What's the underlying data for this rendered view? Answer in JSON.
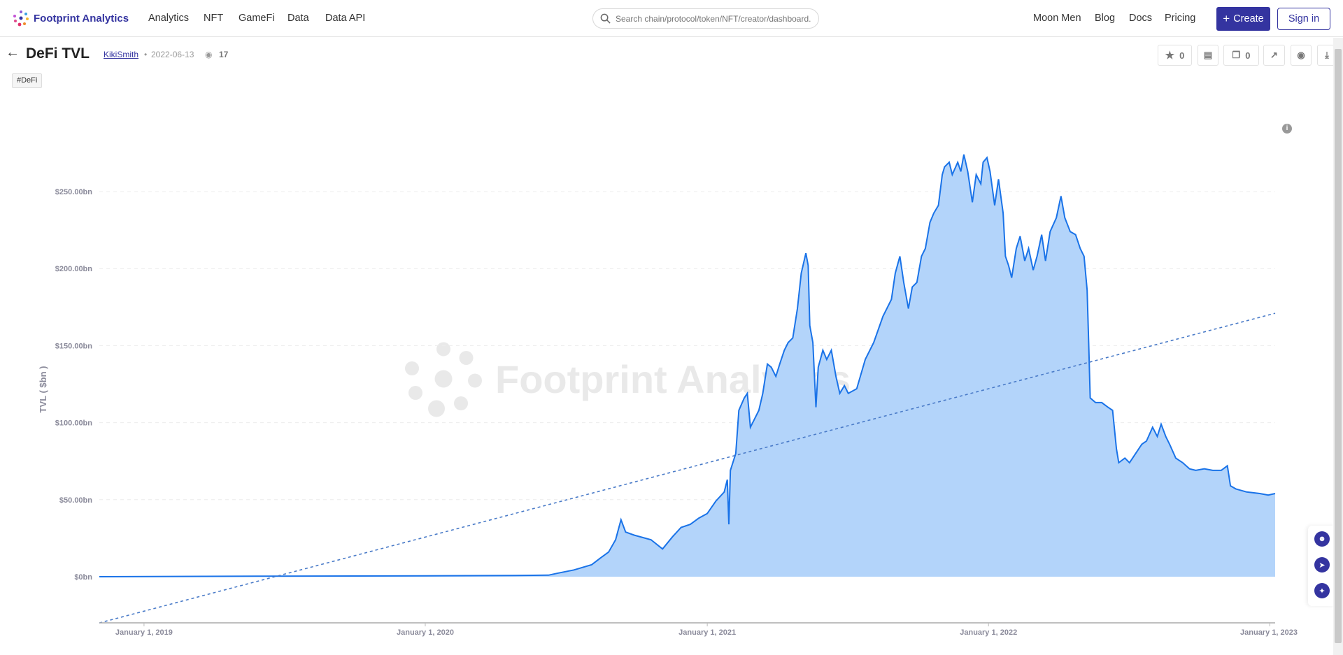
{
  "header": {
    "brand": "Footprint Analytics",
    "nav": [
      "Analytics",
      "NFT",
      "GameFi",
      "Data",
      "Data API"
    ],
    "search_placeholder": "Search chain/protocol/token/NFT/creator/dashboard...",
    "right_nav": [
      "Moon Men",
      "Blog",
      "Docs",
      "Pricing"
    ],
    "create_label": "Create",
    "signin_label": "Sign in"
  },
  "page": {
    "title": "DeFi TVL",
    "author": "KikiSmith",
    "date": "2022-06-13",
    "views": "17",
    "tag": "#DeFi",
    "favorites": "0",
    "copies": "0"
  },
  "colors": {
    "brand": "#3434a0",
    "line": "#1a73e8",
    "area": "#b3d4fa",
    "trend": "#4a7bc8"
  },
  "chart_data": {
    "type": "area",
    "ylabel": "TVL ( $bn )",
    "xlabel": "",
    "ylim": [
      -30,
      290
    ],
    "xlim": [
      "2018-11-04",
      "2023-01-08"
    ],
    "grid": true,
    "yticks": [
      0,
      50,
      100,
      150,
      200,
      250
    ],
    "ytick_labels": [
      "$0bn",
      "$50.00bn",
      "$100.00bn",
      "$150.00bn",
      "$200.00bn",
      "$250.00bn"
    ],
    "xticks": [
      "2019-01-01",
      "2020-01-01",
      "2021-01-01",
      "2022-01-01",
      "2023-01-01"
    ],
    "xtick_labels": [
      "January 1, 2019",
      "January 1, 2020",
      "January 1, 2021",
      "January 1, 2022",
      "January 1, 2023"
    ],
    "watermark": "Footprint Analytics",
    "series": [
      {
        "x": [
          "2018-11-04",
          "2019-05-28",
          "2020-01-01",
          "2020-04-26",
          "2020-06-09",
          "2020-06-20",
          "2020-07-12",
          "2020-08-04",
          "2020-08-15",
          "2020-08-26",
          "2020-09-04",
          "2020-09-11",
          "2020-09-17",
          "2020-09-28",
          "2020-10-20",
          "2020-11-04",
          "2020-11-17",
          "2020-11-28",
          "2020-12-10",
          "2020-12-21",
          "2021-01-01",
          "2021-01-12",
          "2021-01-23",
          "2021-01-27",
          "2021-01-29",
          "2021-01-31",
          "2021-02-07",
          "2021-02-11",
          "2021-02-18",
          "2021-02-22",
          "2021-02-26",
          "2021-03-03",
          "2021-03-09",
          "2021-03-14",
          "2021-03-20",
          "2021-03-25",
          "2021-03-31",
          "2021-04-05",
          "2021-04-11",
          "2021-04-16",
          "2021-04-22",
          "2021-04-28",
          "2021-05-03",
          "2021-05-09",
          "2021-05-12",
          "2021-05-14",
          "2021-05-18",
          "2021-05-22",
          "2021-05-25",
          "2021-05-31",
          "2021-06-05",
          "2021-06-11",
          "2021-06-17",
          "2021-06-22",
          "2021-06-28",
          "2021-07-03",
          "2021-07-14",
          "2021-07-25",
          "2021-08-05",
          "2021-08-17",
          "2021-08-28",
          "2021-09-02",
          "2021-09-08",
          "2021-09-13",
          "2021-09-19",
          "2021-09-24",
          "2021-09-30",
          "2021-10-06",
          "2021-10-11",
          "2021-10-17",
          "2021-10-22",
          "2021-10-28",
          "2021-11-02",
          "2021-11-05",
          "2021-11-11",
          "2021-11-15",
          "2021-11-22",
          "2021-11-26",
          "2021-11-30",
          "2021-12-05",
          "2021-12-11",
          "2021-12-16",
          "2021-12-22",
          "2021-12-25",
          "2021-12-30",
          "2022-01-03",
          "2022-01-09",
          "2022-01-14",
          "2022-01-20",
          "2022-01-23",
          "2022-01-27",
          "2022-01-31",
          "2022-02-06",
          "2022-02-11",
          "2022-02-17",
          "2022-02-22",
          "2022-02-28",
          "2022-03-05",
          "2022-03-11",
          "2022-03-16",
          "2022-03-22",
          "2022-03-30",
          "2022-04-05",
          "2022-04-10",
          "2022-04-17",
          "2022-04-24",
          "2022-04-30",
          "2022-05-05",
          "2022-05-09",
          "2022-05-11",
          "2022-05-13",
          "2022-05-20",
          "2022-05-28",
          "2022-06-05",
          "2022-06-11",
          "2022-06-16",
          "2022-06-19",
          "2022-06-27",
          "2022-07-03",
          "2022-07-11",
          "2022-07-19",
          "2022-07-25",
          "2022-08-02",
          "2022-08-08",
          "2022-08-13",
          "2022-08-19",
          "2022-08-24",
          "2022-09-01",
          "2022-09-10",
          "2022-09-19",
          "2022-09-27",
          "2022-10-08",
          "2022-10-19",
          "2022-10-30",
          "2022-11-07",
          "2022-11-11",
          "2022-11-18",
          "2022-12-02",
          "2022-12-19",
          "2022-12-30",
          "2023-01-08"
        ],
        "y": [
          0,
          0.3,
          0.6,
          0.8,
          1.0,
          2.2,
          4.4,
          7.8,
          12,
          16,
          24,
          37,
          29,
          27,
          24,
          18,
          26,
          32,
          34,
          38,
          41,
          49,
          55,
          63,
          34,
          69,
          80,
          108,
          116,
          119,
          97,
          102,
          108,
          119,
          138,
          136,
          130,
          138,
          147,
          152,
          155,
          174,
          197,
          210,
          202,
          163,
          152,
          110,
          136,
          147,
          141,
          147,
          130,
          119,
          124,
          119,
          122,
          141,
          152,
          169,
          180,
          197,
          208,
          191,
          174,
          188,
          191,
          208,
          213,
          230,
          236,
          241,
          261,
          266,
          269,
          261,
          269,
          263,
          274,
          263,
          243,
          261,
          255,
          269,
          272,
          263,
          241,
          258,
          236,
          208,
          202,
          194,
          213,
          221,
          205,
          213,
          199,
          208,
          222,
          205,
          224,
          233,
          247,
          233,
          224,
          222,
          213,
          208,
          186,
          152,
          116,
          113,
          113,
          110,
          108,
          83,
          74,
          77,
          74,
          80,
          86,
          88,
          97,
          91,
          99,
          91,
          86,
          77,
          74,
          70,
          69,
          70,
          69,
          69,
          72,
          59,
          57,
          55,
          54,
          53,
          54
        ]
      }
    ],
    "trendline": {
      "x": [
        "2018-11-04",
        "2023-01-08"
      ],
      "y": [
        -30,
        171
      ]
    }
  }
}
